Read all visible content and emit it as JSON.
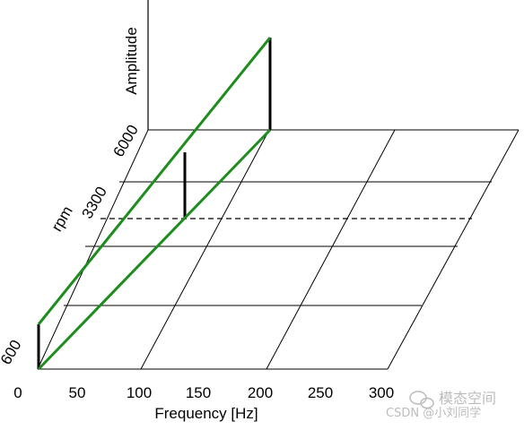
{
  "diagram": {
    "x_axis": {
      "label": "Frequency [Hz]",
      "ticks": [
        "0",
        "50",
        "100",
        "150",
        "200",
        "250",
        "300"
      ]
    },
    "rpm_axis": {
      "label": "rpm",
      "ticks": [
        "600",
        "3300",
        "6000"
      ]
    },
    "amplitude_axis": {
      "label": "Amplitude"
    },
    "colors": {
      "grid": "#000000",
      "order_lines": "#1e8c1e",
      "amplitude_bars": "#000000"
    }
  },
  "watermark": {
    "text1": "模态空间",
    "text2": "CSDN @小刘同学"
  }
}
